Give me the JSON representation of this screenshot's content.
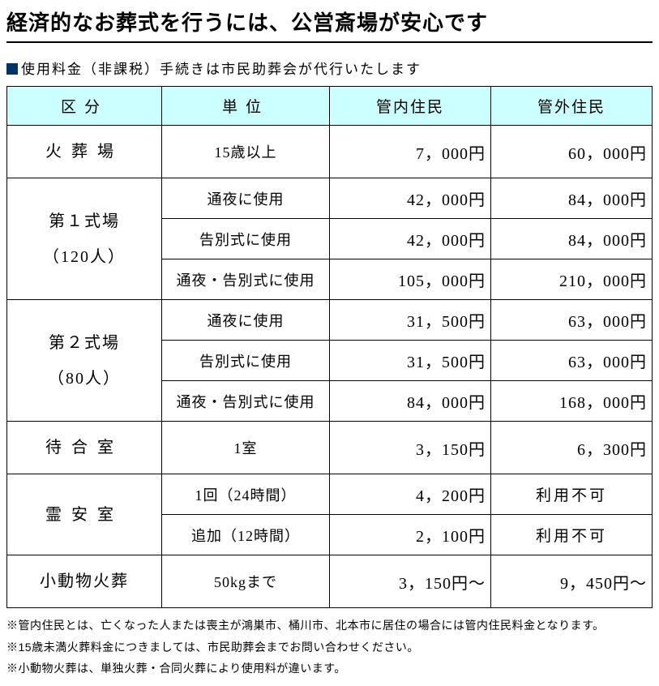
{
  "title": "経済的なお葬式を行うには、公営斎場が安心です",
  "subtitle": "使用料金（非課税）手続きは市民助葬会が代行いたします",
  "table": {
    "columns": [
      "区分",
      "単位",
      "管内住民",
      "管外住民"
    ],
    "rows": [
      {
        "category": "火葬場",
        "cat_rowspan": 1,
        "items": [
          {
            "unit": "15歳以上",
            "local": "7，000円",
            "nonlocal": "60，000円"
          }
        ]
      },
      {
        "category": "第１式場\n（120人）",
        "cat_rowspan": 3,
        "items": [
          {
            "unit": "通夜に使用",
            "local": "42，000円",
            "nonlocal": "84，000円"
          },
          {
            "unit": "告別式に使用",
            "local": "42，000円",
            "nonlocal": "84，000円"
          },
          {
            "unit": "通夜・告別式に使用",
            "local": "105，000円",
            "nonlocal": "210，000円"
          }
        ]
      },
      {
        "category": "第２式場\n（80人）",
        "cat_rowspan": 3,
        "items": [
          {
            "unit": "通夜に使用",
            "local": "31，500円",
            "nonlocal": "63，000円"
          },
          {
            "unit": "告別式に使用",
            "local": "31，500円",
            "nonlocal": "63，000円"
          },
          {
            "unit": "通夜・告別式に使用",
            "local": "84，000円",
            "nonlocal": "168，000円"
          }
        ]
      },
      {
        "category": "待合室",
        "cat_rowspan": 1,
        "items": [
          {
            "unit": "1室",
            "local": "3，150円",
            "nonlocal": "6，300円"
          }
        ]
      },
      {
        "category": "霊安室",
        "cat_rowspan": 2,
        "items": [
          {
            "unit": "1回（24時間）",
            "local": "4，200円",
            "nonlocal": "利用不可",
            "na": true
          },
          {
            "unit": "追加（12時間）",
            "local": "2，100円",
            "nonlocal": "利用不可",
            "na": true
          }
        ]
      },
      {
        "category": "小動物火葬",
        "cat_rowspan": 1,
        "items": [
          {
            "unit": "50kgまで",
            "local": "3，150円～",
            "nonlocal": "9，450円～"
          }
        ]
      }
    ]
  },
  "notes": [
    "※管内住民とは、亡くなった人または喪主が鴻巣市、桶川市、北本市に居住の場合には管内住民料金となります。",
    "※15歳未満火葬料金につきましては、市民助葬会までお問い合わせください。",
    "※小動物火葬は、単独火葬・合同火葬により使用料が違います。"
  ]
}
